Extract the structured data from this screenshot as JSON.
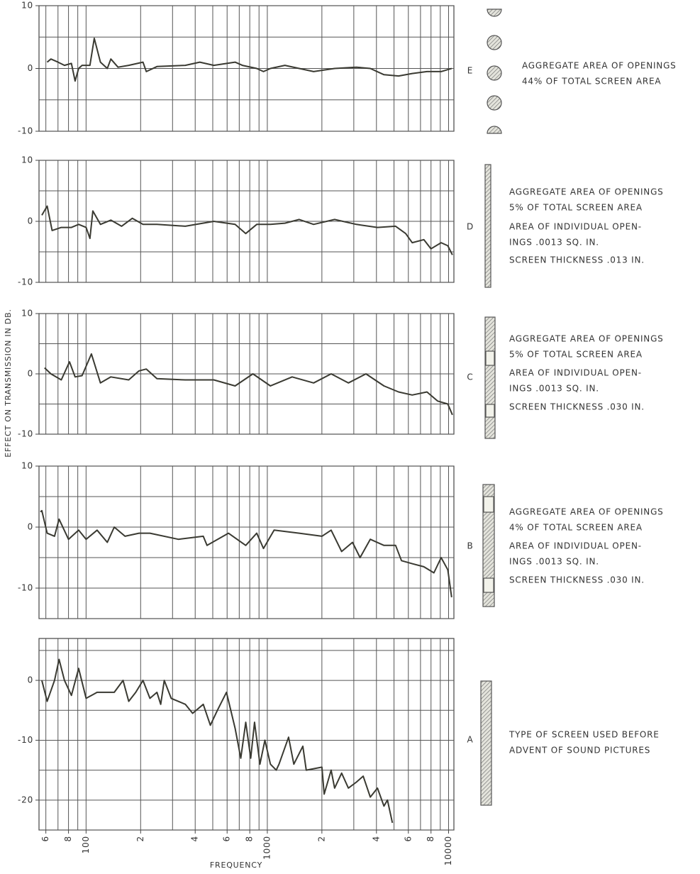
{
  "xlabel": "FREQUENCY",
  "ylabel": "EFFECT ON TRANSMISSION IN DB.",
  "chart_data": [
    {
      "type": "line",
      "label": "E",
      "log_x": true,
      "annotations": [
        "AGGREGATE AREA OF OPENINGS",
        "44% OF TOTAL SCREEN AREA"
      ],
      "xlim": [
        55,
        10700
      ],
      "ylim": [
        -10,
        10
      ],
      "yticks": [
        -10,
        0,
        10
      ],
      "ygrid": [
        -10,
        -5,
        0,
        5,
        10
      ],
      "xgrid": [
        60,
        70,
        80,
        90,
        100,
        200,
        300,
        400,
        500,
        600,
        700,
        800,
        900,
        1000,
        2000,
        3000,
        4000,
        5000,
        6000,
        7000,
        8000,
        9000,
        10000
      ],
      "x": [
        61,
        64,
        70,
        76,
        83,
        87,
        91,
        95,
        105,
        111,
        120,
        131,
        137,
        150,
        172,
        206,
        215,
        246,
        353,
        424,
        507,
        664,
        728,
        874,
        952,
        1040,
        1250,
        1500,
        1800,
        2350,
        3100,
        3700,
        4400,
        5300,
        6300,
        7600,
        9100,
        10400
      ],
      "series": [
        {
          "color": "#3a3a32",
          "values": [
            1,
            1.5,
            1,
            0.5,
            0.8,
            -2,
            0,
            0.5,
            0.5,
            4.8,
            1,
            0,
            1.5,
            0.2,
            0.5,
            1,
            -0.5,
            0.3,
            0.5,
            1,
            0.5,
            1,
            0.5,
            0,
            -0.5,
            0,
            0.5,
            0,
            -0.5,
            0,
            0.2,
            0,
            -1,
            -1.2,
            -0.8,
            -0.5,
            -0.5,
            0
          ]
        }
      ]
    },
    {
      "type": "line",
      "label": "D",
      "log_x": true,
      "annotations": [
        "AGGREGATE AREA OF OPENINGS",
        "5% OF TOTAL SCREEN AREA",
        "AREA OF INDIVIDUAL OPEN-",
        "INGS .0013 SQ. IN.",
        "SCREEN THICKNESS .013 IN."
      ],
      "xlim": [
        55,
        10700
      ],
      "ylim": [
        -10,
        10
      ],
      "yticks": [
        -10,
        0,
        10
      ],
      "ygrid": [
        -10,
        -5,
        0,
        5,
        10
      ],
      "xgrid": [
        60,
        70,
        80,
        90,
        100,
        200,
        300,
        400,
        500,
        600,
        700,
        800,
        900,
        1000,
        2000,
        3000,
        4000,
        5000,
        6000,
        7000,
        8000,
        9000,
        10000
      ],
      "x": [
        57,
        61,
        65,
        73,
        83,
        91,
        100,
        105,
        109,
        120,
        137,
        157,
        180,
        206,
        246,
        353,
        507,
        664,
        760,
        874,
        1040,
        1250,
        1500,
        1800,
        2350,
        3100,
        4050,
        5100,
        5800,
        6300,
        7300,
        8000,
        9100,
        9900,
        10500
      ],
      "series": [
        {
          "color": "#3a3a32",
          "values": [
            1,
            2.5,
            -1.5,
            -1,
            -1,
            -0.5,
            -1,
            -2.8,
            1.7,
            -0.5,
            0.2,
            -0.8,
            0.5,
            -0.5,
            -0.5,
            -0.8,
            0,
            -0.5,
            -2,
            -0.5,
            -0.5,
            -0.3,
            0.3,
            -0.5,
            0.3,
            -0.5,
            -1,
            -0.8,
            -2,
            -3.5,
            -3,
            -4.5,
            -3.5,
            -4,
            -5.5
          ]
        }
      ]
    },
    {
      "type": "line",
      "label": "C",
      "log_x": true,
      "annotations": [
        "AGGREGATE AREA OF OPENINGS",
        "5% OF TOTAL SCREEN AREA",
        "AREA OF INDIVIDUAL OPEN-",
        "INGS .0013 SQ. IN.",
        "SCREEN THICKNESS .030 IN."
      ],
      "xlim": [
        55,
        10700
      ],
      "ylim": [
        -10,
        10
      ],
      "yticks": [
        -10,
        0,
        10
      ],
      "ygrid": [
        -10,
        -5,
        0,
        5,
        10
      ],
      "xgrid": [
        60,
        70,
        80,
        90,
        100,
        200,
        300,
        400,
        500,
        600,
        700,
        800,
        900,
        1000,
        2000,
        3000,
        4000,
        5000,
        6000,
        7000,
        8000,
        9000,
        10000
      ],
      "x": [
        59,
        64,
        73,
        81,
        87,
        95,
        107,
        120,
        137,
        172,
        196,
        215,
        246,
        353,
        507,
        664,
        833,
        1040,
        1370,
        1800,
        2250,
        2800,
        3500,
        4400,
        5300,
        6300,
        7600,
        8700,
        9900,
        10500
      ],
      "series": [
        {
          "color": "#3a3a32",
          "values": [
            1,
            0,
            -1,
            2,
            -0.5,
            -0.3,
            3.3,
            -1.5,
            -0.5,
            -1,
            0.5,
            0.8,
            -0.8,
            -1,
            -1,
            -2,
            0,
            -2,
            -0.5,
            -1.5,
            0,
            -1.5,
            0,
            -2,
            -3,
            -3.5,
            -3,
            -4.5,
            -5,
            -6.8
          ]
        }
      ]
    },
    {
      "type": "line",
      "label": "B",
      "log_x": true,
      "annotations": [
        "AGGREGATE AREA OF OPENINGS",
        "4% OF TOTAL SCREEN AREA",
        "AREA OF INDIVIDUAL OPEN-",
        "INGS .0013 SQ. IN.",
        "SCREEN THICKNESS .030 IN."
      ],
      "xlim": [
        55,
        10700
      ],
      "ylim": [
        -15,
        10
      ],
      "yticks": [
        -10,
        0,
        10
      ],
      "ygrid": [
        -15,
        -10,
        -5,
        0,
        5,
        10
      ],
      "xgrid": [
        60,
        70,
        80,
        90,
        100,
        200,
        300,
        400,
        500,
        600,
        700,
        800,
        900,
        1000,
        2000,
        3000,
        4000,
        5000,
        6000,
        7000,
        8000,
        9000,
        10000
      ],
      "x": [
        56,
        57,
        61,
        67,
        71,
        80,
        91,
        100,
        115,
        131,
        143,
        164,
        196,
        225,
        323,
        443,
        465,
        610,
        760,
        874,
        952,
        1090,
        1500,
        2000,
        2250,
        2570,
        2950,
        3250,
        3700,
        4400,
        5100,
        5500,
        6300,
        7300,
        8300,
        9100,
        9900,
        10400
      ],
      "series": [
        {
          "color": "#3a3a32",
          "values": [
            2.5,
            2.7,
            -1,
            -1.5,
            1.3,
            -2,
            -0.5,
            -2,
            -0.5,
            -2.5,
            0,
            -1.5,
            -1,
            -1,
            -2,
            -1.5,
            -3,
            -1,
            -3,
            -1,
            -3.5,
            -0.5,
            -1,
            -1.5,
            -0.5,
            -4,
            -2.5,
            -5,
            -2,
            -3,
            -3,
            -5.5,
            -6,
            -6.5,
            -7.5,
            -5,
            -7,
            -11.5
          ]
        }
      ]
    },
    {
      "type": "line",
      "label": "A",
      "log_x": true,
      "annotations": [
        "TYPE OF SCREEN USED BEFORE",
        "ADVENT OF SOUND PICTURES"
      ],
      "xlim": [
        55,
        10700
      ],
      "ylim": [
        -25,
        7
      ],
      "yticks": [
        -20,
        -10,
        0
      ],
      "ygrid": [
        -25,
        -20,
        -15,
        -10,
        -5,
        0,
        5
      ],
      "xgrid": [
        60,
        70,
        80,
        90,
        100,
        200,
        300,
        400,
        500,
        600,
        700,
        800,
        900,
        1000,
        2000,
        3000,
        4000,
        5000,
        6000,
        7000,
        8000,
        9000,
        10000
      ],
      "xticks": [
        {
          "value": 60,
          "label": "6"
        },
        {
          "value": 80,
          "label": "8"
        },
        100,
        {
          "value": 200,
          "label": "2"
        },
        {
          "value": 400,
          "label": "4"
        },
        {
          "value": 600,
          "label": "6"
        },
        {
          "value": 800,
          "label": "8"
        },
        1000,
        {
          "value": 2000,
          "label": "2"
        },
        {
          "value": 4000,
          "label": "4"
        },
        {
          "value": 6000,
          "label": "6"
        },
        {
          "value": 8000,
          "label": "8"
        },
        10000
      ],
      "x": [
        57,
        61,
        67,
        71,
        76,
        83,
        91,
        100,
        115,
        143,
        160,
        172,
        188,
        206,
        225,
        246,
        258,
        270,
        295,
        353,
        387,
        443,
        485,
        530,
        595,
        664,
        714,
        760,
        810,
        850,
        910,
        970,
        1040,
        1120,
        1160,
        1310,
        1400,
        1570,
        1640,
        2000,
        2060,
        2250,
        2350,
        2570,
        2800,
        3100,
        3380,
        3700,
        4050,
        4400,
        4600,
        4900
      ],
      "series": [
        {
          "color": "#3a3a32",
          "values": [
            0,
            -3.5,
            0,
            3.5,
            0,
            -2.5,
            2,
            -3,
            -2,
            -2,
            0,
            -3.5,
            -2,
            0,
            -3,
            -2,
            -4,
            0,
            -3,
            -4,
            -5.5,
            -4,
            -7.5,
            -5,
            -2,
            -8,
            -13,
            -7,
            -13,
            -7,
            -14,
            -10,
            -14,
            -15,
            -14,
            -9.5,
            -14,
            -11,
            -15,
            -14.5,
            -19,
            -15,
            -18,
            -15.5,
            -18,
            -17,
            -16,
            -19.5,
            -18,
            -21,
            -20,
            -23.8
          ]
        }
      ]
    }
  ]
}
